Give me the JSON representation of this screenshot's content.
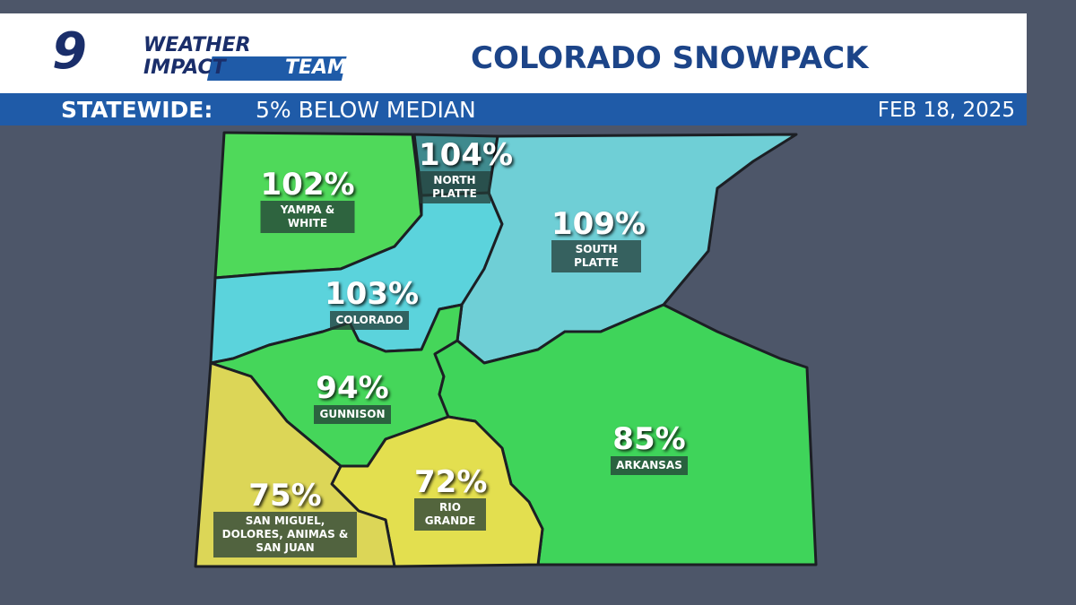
{
  "header": {
    "logo": {
      "number": "9",
      "line1": "WEATHER",
      "line2a": "IMPACT",
      "line2b": "TEAM"
    },
    "title": "COLORADO SNOWPACK"
  },
  "banner": {
    "label": "STATEWIDE:",
    "summary": "5% BELOW MEDIAN",
    "date": "FEB 18, 2025"
  },
  "regions": [
    {
      "percent": "102%",
      "name": "YAMPA & WHITE"
    },
    {
      "percent": "104%",
      "name": "NORTH PLATTE"
    },
    {
      "percent": "109%",
      "name": "SOUTH PLATTE"
    },
    {
      "percent": "103%",
      "name": "COLORADO"
    },
    {
      "percent": "94%",
      "name": "GUNNISON"
    },
    {
      "percent": "85%",
      "name": "ARKANSAS"
    },
    {
      "percent": "75%",
      "name": "SAN MIGUEL, DOLORES, ANIMAS & SAN JUAN"
    },
    {
      "percent": "72%",
      "name": "RIO GRANDE"
    }
  ]
}
